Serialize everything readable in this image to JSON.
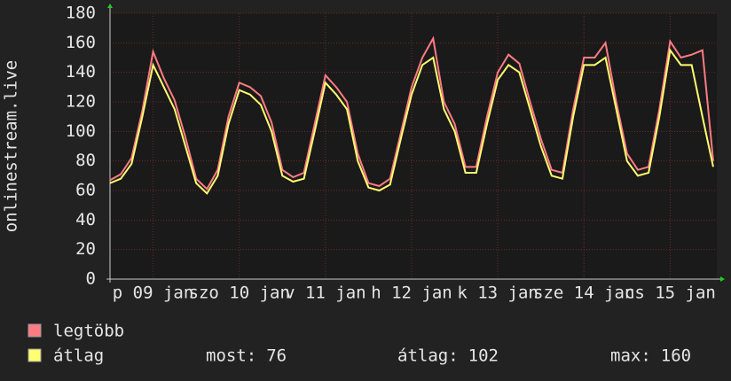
{
  "chart_data": {
    "type": "line",
    "y_label": "onlinestream.live",
    "x": [
      0,
      3,
      6,
      9,
      12,
      15,
      18,
      21,
      24,
      27,
      30,
      33,
      36,
      39,
      42,
      45,
      48,
      51,
      54,
      57,
      60,
      63,
      66,
      69,
      72,
      75,
      78,
      81,
      84,
      87,
      90,
      93,
      96,
      99,
      102,
      105,
      108,
      111,
      114,
      117,
      120,
      123,
      126,
      129,
      132,
      135,
      138,
      141,
      144,
      147,
      150,
      153,
      156,
      159,
      162,
      165,
      168
    ],
    "series": [
      {
        "name": "legtöbb",
        "color": "#ff7b84",
        "values": [
          67,
          71,
          82,
          114,
          154,
          136,
          121,
          96,
          68,
          61,
          74,
          110,
          133,
          130,
          124,
          106,
          74,
          69,
          72,
          105,
          138,
          130,
          120,
          85,
          65,
          63,
          68,
          99,
          130,
          150,
          163,
          120,
          105,
          76,
          76,
          110,
          140,
          152,
          146,
          120,
          95,
          74,
          72,
          115,
          150,
          150,
          160,
          120,
          85,
          74,
          76,
          115,
          161,
          150,
          152,
          155,
          80
        ]
      },
      {
        "name": "átlag",
        "color": "#ffff70",
        "values": [
          65,
          68,
          78,
          110,
          145,
          130,
          115,
          90,
          65,
          58,
          70,
          105,
          128,
          125,
          118,
          100,
          70,
          66,
          68,
          100,
          133,
          125,
          115,
          80,
          62,
          60,
          64,
          95,
          125,
          145,
          150,
          115,
          100,
          72,
          72,
          105,
          135,
          145,
          140,
          115,
          90,
          70,
          68,
          110,
          145,
          145,
          150,
          115,
          80,
          70,
          72,
          110,
          155,
          145,
          145,
          110,
          76
        ]
      }
    ],
    "xlim": [
      0,
      169
    ],
    "xticks": [
      {
        "value": 12,
        "label": "p 09 jan"
      },
      {
        "value": 36,
        "label": "szo 10 jan"
      },
      {
        "value": 60,
        "label": "v 11 jan"
      },
      {
        "value": 84,
        "label": "h 12 jan"
      },
      {
        "value": 108,
        "label": "k 13 jan"
      },
      {
        "value": 132,
        "label": "sze 14 jan"
      },
      {
        "value": 156,
        "label": "cs 15 jan"
      }
    ],
    "ylim": [
      0,
      180
    ],
    "yticks": [
      0,
      20,
      40,
      60,
      80,
      100,
      120,
      140,
      160,
      180
    ],
    "grid": true,
    "stats": [
      {
        "label": "most:",
        "value": 76
      },
      {
        "label": "átlag:",
        "value": 102
      },
      {
        "label": "max:",
        "value": 160
      }
    ]
  }
}
